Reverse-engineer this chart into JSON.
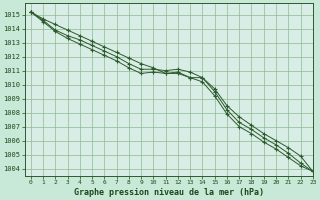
{
  "title": "Graphe pression niveau de la mer (hPa)",
  "fig_facecolor": "#c8e8d8",
  "plot_facecolor": "#d8ede5",
  "line_color": "#2d5a2d",
  "grid_color": "#90b890",
  "tick_color": "#1a4a1a",
  "label_color": "#1a4a1a",
  "xlim": [
    -0.5,
    23
  ],
  "ylim": [
    1003.5,
    1015.8
  ],
  "yticks": [
    1004,
    1005,
    1006,
    1007,
    1008,
    1009,
    1010,
    1011,
    1012,
    1013,
    1014,
    1015
  ],
  "xticks": [
    0,
    1,
    2,
    3,
    4,
    5,
    6,
    7,
    8,
    9,
    10,
    11,
    12,
    13,
    14,
    15,
    16,
    17,
    18,
    19,
    20,
    21,
    22,
    23
  ],
  "series1": [
    1015.2,
    1014.7,
    1014.3,
    1013.9,
    1013.5,
    1013.1,
    1012.7,
    1012.3,
    1011.9,
    1011.5,
    1011.2,
    1010.8,
    1010.9,
    1010.5,
    1010.5,
    1009.7,
    1008.5,
    1007.7,
    1007.1,
    1006.5,
    1006.0,
    1005.5,
    1004.9,
    1003.8
  ],
  "series2": [
    1015.2,
    1014.6,
    1013.9,
    1013.5,
    1013.2,
    1012.8,
    1012.4,
    1012.0,
    1011.5,
    1011.1,
    1011.1,
    1011.0,
    1011.1,
    1010.9,
    1010.5,
    1009.5,
    1008.2,
    1007.3,
    1006.8,
    1006.2,
    1005.7,
    1005.1,
    1004.4,
    1003.8
  ],
  "series3": [
    1015.2,
    1014.5,
    1013.8,
    1013.3,
    1012.9,
    1012.5,
    1012.1,
    1011.7,
    1011.2,
    1010.8,
    1010.9,
    1010.8,
    1010.8,
    1010.5,
    1010.2,
    1009.2,
    1007.9,
    1007.0,
    1006.5,
    1005.9,
    1005.4,
    1004.8,
    1004.2,
    1003.8
  ]
}
